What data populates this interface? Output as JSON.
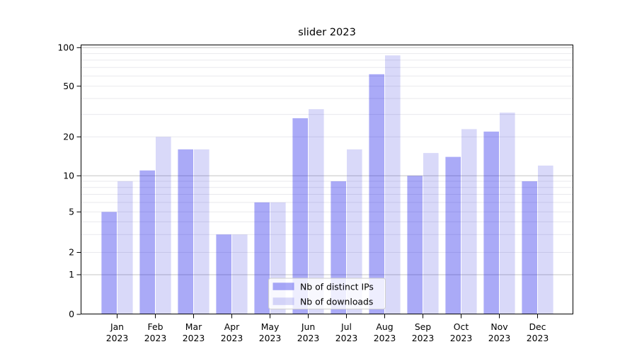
{
  "chart_data": {
    "type": "bar",
    "title": "slider 2023",
    "categories": [
      "Jan",
      "Feb",
      "Mar",
      "Apr",
      "May",
      "Jun",
      "Jul",
      "Aug",
      "Sep",
      "Oct",
      "Nov",
      "Dec"
    ],
    "year_label": "2023",
    "series": [
      {
        "name": "Nb of distinct IPs",
        "color_hex": "#aaaaf6",
        "color_rgba": "rgba(0,0,230,0.335)",
        "values": [
          5,
          11,
          16,
          3,
          6,
          28,
          9,
          62,
          10,
          14,
          22,
          9
        ]
      },
      {
        "name": "Nb of downloads",
        "color_hex": "#dadaf9",
        "color_rgba": "rgba(0,0,215,0.15)",
        "values": [
          9,
          20,
          16,
          3,
          6,
          33,
          16,
          87,
          15,
          23,
          31,
          12
        ]
      }
    ],
    "yticks": [
      0,
      1,
      2,
      5,
      10,
      20,
      50,
      100
    ],
    "ylim": [
      0,
      100
    ],
    "yscale": "symlog-like",
    "grid": "on",
    "grid_major_color": "#c6c6c6",
    "grid_minor_color": "#e9e9ed",
    "axis_color": "#000000",
    "legend_position": "lower-center-inside",
    "legend_bg": "rgba(255,255,255,0.8)",
    "legend_border": "#cfcfcf"
  }
}
